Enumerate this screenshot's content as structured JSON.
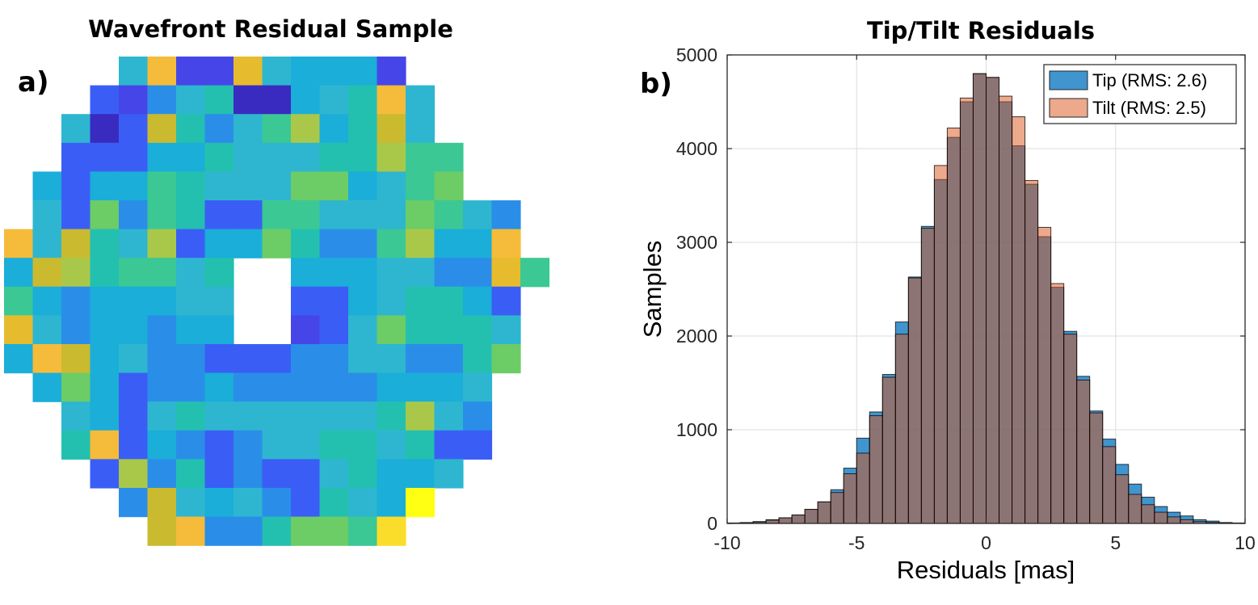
{
  "panel_a": {
    "label": "a)",
    "title": "Wavefront Residual Sample",
    "colors": {
      "C": "#2eb6d0",
      "O": "#f5bb3a",
      "I": "#4646e8",
      "G": "#e6bc2e",
      "L": "#1aaed9",
      "B": "#3a5ef5",
      "U": "#2a8ee8",
      "T": "#23c0b0",
      "D": "#3a2bc0",
      "Y": "#caba30",
      "M": "#3bc894",
      "A": "#a9c84a",
      "E": "#6ccc66",
      "W": "#fadd2a",
      "Q": "#ffff14"
    },
    "rows": [
      "....COIIGCLLLI....",
      "...BIUCTDDLCTOC...",
      "..CDBYTUCMALTYC...",
      "..BBBLLTCCCTTAMM..",
      ".LBLLMTCCCEELCME..",
      ".CBEUMTBBMMCCCEMCU",
      "OCYTCABLLETUUMALLO",
      "LYATMMCT..LLLCCUUGM",
      "MLULLLCC..BBLCTTLB",
      "GCULLULL..IBCETTTC",
      "LOYLCUUBBBUUCCUUTE",
      ".LELBUULUUUUULLLC",
      "..CLBCTCCCCCCTACU",
      "..TOBLUBUCCTTCTBB",
      "...BAUTBUBBCTLLC",
      "....UYCLCUBTCLQ",
      ".....YOUUTEEMW"
    ]
  },
  "panel_b": {
    "label": "b)",
    "chart_data": {
      "type": "bar",
      "title": "Tip/Tilt Residuals",
      "xlabel": "Residuals [mas]",
      "ylabel": "Samples",
      "xlim": [
        -10,
        10
      ],
      "ylim": [
        0,
        5000
      ],
      "xticks": [
        -10,
        -5,
        0,
        5,
        10
      ],
      "yticks": [
        0,
        1000,
        2000,
        3000,
        4000,
        5000
      ],
      "grid": true,
      "legend_position": "top-right",
      "bin_edges_start": -10,
      "bin_width": 0.5,
      "series": [
        {
          "name": "Tip (RMS: 2.6)",
          "color": "#0072bd",
          "values": [
            5,
            10,
            20,
            40,
            60,
            90,
            150,
            230,
            360,
            590,
            910,
            1190,
            1590,
            2150,
            2630,
            3170,
            3670,
            4120,
            4500,
            4800,
            4760,
            4500,
            4030,
            3620,
            3060,
            2520,
            2050,
            1570,
            1200,
            900,
            630,
            420,
            280,
            180,
            120,
            80,
            40,
            25,
            10,
            5
          ]
        },
        {
          "name": "Tilt (RMS: 2.5)",
          "color": "#d95319",
          "values": [
            2,
            5,
            15,
            35,
            60,
            90,
            150,
            230,
            330,
            530,
            750,
            1150,
            1560,
            2020,
            2620,
            3150,
            3820,
            4220,
            4540,
            4800,
            4760,
            4560,
            4340,
            3660,
            3160,
            2560,
            2020,
            1530,
            1180,
            820,
            520,
            310,
            200,
            120,
            70,
            40,
            20,
            10,
            5,
            2
          ]
        }
      ]
    }
  }
}
